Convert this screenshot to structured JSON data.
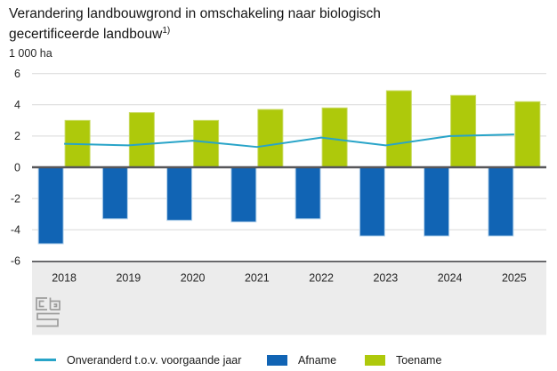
{
  "header": {
    "title_line1": "Verandering landbouwgrond in omschakeling naar biologisch",
    "title_line2": "gecertificeerde landbouw",
    "footnote_marker": "1)"
  },
  "colors": {
    "afname_blue": "#1164b4",
    "afname_blue_edge": "#b5d3ec",
    "toename_green": "#aec90b",
    "toename_green_edge": "#c9da63",
    "line_teal": "#28a4c8",
    "axis_dark": "#57575a",
    "gridline": "#d9d9d9",
    "band_grey": "#ececec",
    "logo_grey": "#9d9d9c",
    "text_dark": "#262626"
  },
  "chart_data": {
    "type": "combo-bar-line",
    "title": "Verandering landbouwgrond in omschakeling naar biologisch gecertificeerde landbouw 1)",
    "unit": "1 000 ha",
    "categories": [
      "2018",
      "2019",
      "2020",
      "2021",
      "2022",
      "2023",
      "2024",
      "2025"
    ],
    "series": [
      {
        "name": "Onveranderd t.o.v. voorgaande jaar",
        "type": "line",
        "values": [
          1.5,
          1.4,
          1.7,
          1.3,
          1.9,
          1.4,
          2.0,
          2.1
        ]
      },
      {
        "name": "Afname",
        "type": "bar",
        "values": [
          -4.9,
          -3.3,
          -3.4,
          -3.5,
          -3.3,
          -4.4,
          -4.4,
          -4.4
        ]
      },
      {
        "name": "Toename",
        "type": "bar",
        "values": [
          3.0,
          3.5,
          3.0,
          3.7,
          3.8,
          4.9,
          4.6,
          4.2
        ]
      }
    ],
    "ylim": [
      -6,
      6
    ],
    "yticks": [
      6,
      4,
      2,
      0,
      -2,
      -4,
      -6
    ],
    "grid": true,
    "legend_position": "bottom"
  },
  "logo": {
    "name": "CBS"
  }
}
